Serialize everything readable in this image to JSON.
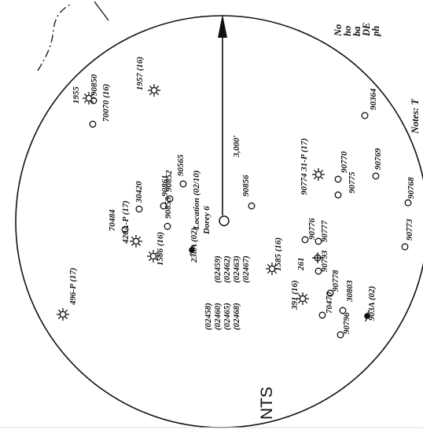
{
  "radius_label": "3,000'",
  "scale_note": "NTS",
  "location_label": "Location (02/10)",
  "well_name": "Dorey 6",
  "wells": [
    {
      "id": "well-90850",
      "label": "90850",
      "type": "open"
    },
    {
      "id": "well-1955",
      "label": "1955",
      "type": "gas"
    },
    {
      "id": "well-70070",
      "label": "70070 (16)",
      "type": "open"
    },
    {
      "id": "well-1957",
      "label": "1957 (16)",
      "type": "gas"
    },
    {
      "id": "well-90364",
      "label": "90364",
      "type": "open"
    },
    {
      "id": "well-90770",
      "label": "90770",
      "type": "open"
    },
    {
      "id": "well-90774",
      "label": "90774 31-P (17)",
      "type": "gas"
    },
    {
      "id": "well-90775",
      "label": "90775",
      "type": "open"
    },
    {
      "id": "well-90769",
      "label": "90769",
      "type": "open"
    },
    {
      "id": "well-90768",
      "label": "90768",
      "type": "open"
    },
    {
      "id": "well-90856",
      "label": "90856",
      "type": "open"
    },
    {
      "id": "well-90565",
      "label": "90565",
      "type": "open"
    },
    {
      "id": "well-90861",
      "label": "90861",
      "type": "open"
    },
    {
      "id": "well-90852",
      "label": "90852",
      "type": "open"
    },
    {
      "id": "well-90853",
      "label": "90853",
      "type": "open"
    },
    {
      "id": "well-30420",
      "label": "30420",
      "type": "open"
    },
    {
      "id": "well-70484",
      "label": "70484",
      "type": "open"
    },
    {
      "id": "well-420a",
      "label": "420A-P (17)",
      "type": "gas"
    },
    {
      "id": "well-1586",
      "label": "1586 (16)",
      "type": "gas"
    },
    {
      "id": "well-238a",
      "label": "238A (02)",
      "type": "oil"
    },
    {
      "id": "well-496p",
      "label": "496-P (17)",
      "type": "gas"
    },
    {
      "id": "well-1585",
      "label": "1585 (16)",
      "type": "gas"
    },
    {
      "id": "well-90776",
      "label": "90776",
      "type": "open"
    },
    {
      "id": "well-90777",
      "label": "90777",
      "type": "open"
    },
    {
      "id": "well-90773",
      "label": "90773",
      "type": "open"
    },
    {
      "id": "well-261",
      "label": "261",
      "type": "dry"
    },
    {
      "id": "well-90793",
      "label": "90793",
      "type": "open"
    },
    {
      "id": "well-90778",
      "label": "90778",
      "type": "open"
    },
    {
      "id": "well-391",
      "label": "391 (16)",
      "type": "gas"
    },
    {
      "id": "well-90796",
      "label": "90796",
      "type": "open"
    },
    {
      "id": "well-30803",
      "label": "30803",
      "type": "open"
    },
    {
      "id": "well-70470",
      "label": "70470",
      "type": "open"
    },
    {
      "id": "well-903a",
      "label": "903A (02)",
      "type": "oil"
    }
  ],
  "permit_labels": [
    "(02458)",
    "(02460)",
    "(02465)",
    "(02468)",
    "(02459)",
    "(02462)",
    "(02463)",
    "(02467)"
  ],
  "notes_title": "Notes:",
  "notes_lines": [
    "No",
    "ho",
    "ba",
    "DE",
    "ph",
    "Notes: T"
  ],
  "colors": {
    "ink": "#111111",
    "background": "#ffffff"
  }
}
